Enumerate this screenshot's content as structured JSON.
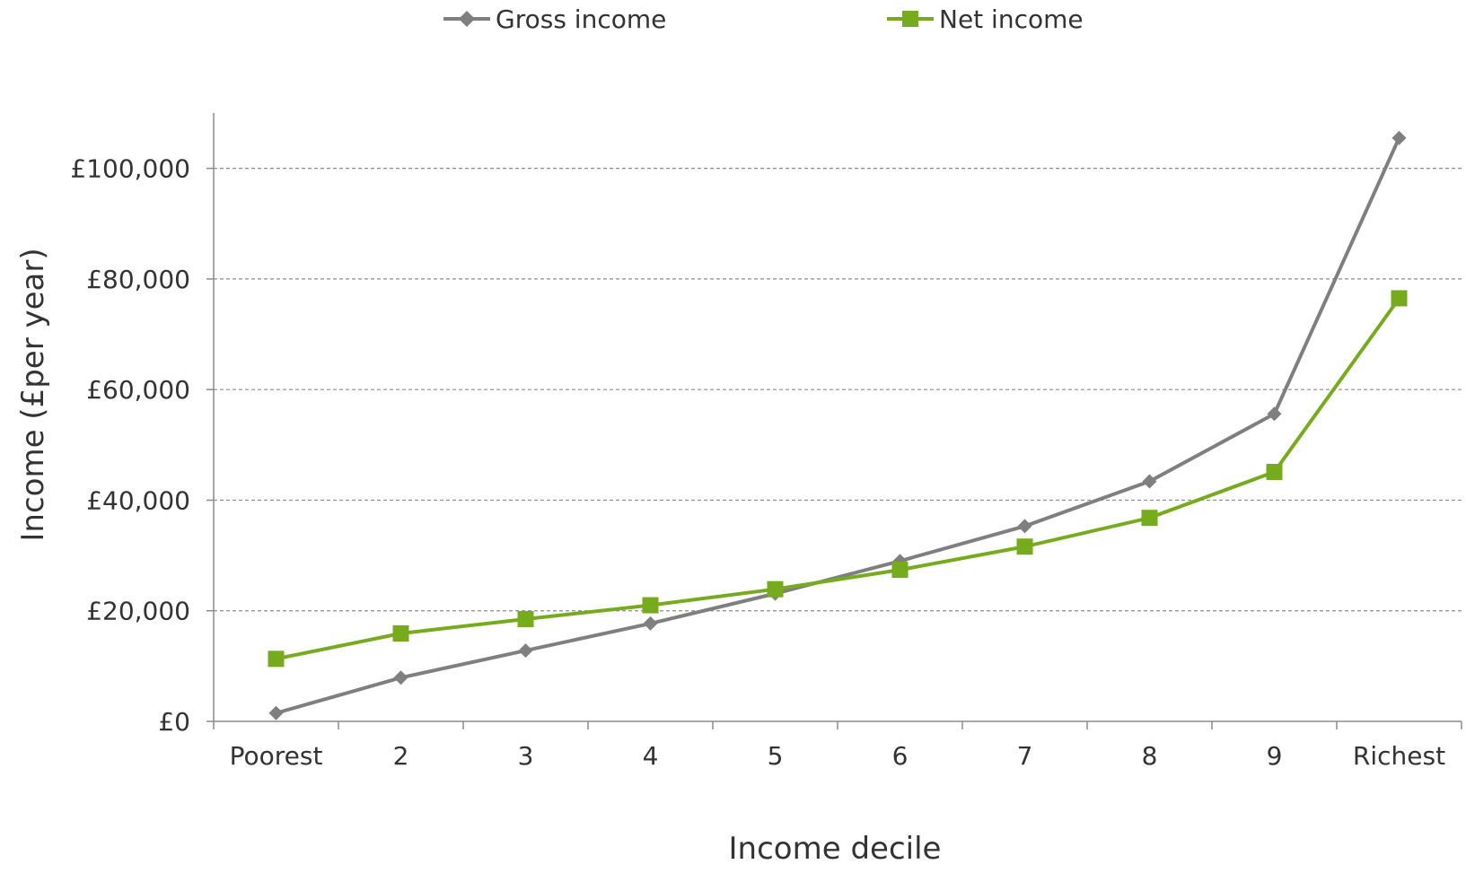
{
  "chart_data": {
    "type": "line",
    "title": "",
    "xlabel": "Income decile",
    "ylabel": "Income (£per year)",
    "categories": [
      "Poorest",
      "2",
      "3",
      "4",
      "5",
      "6",
      "7",
      "8",
      "9",
      "Richest"
    ],
    "ylim": [
      0,
      110000
    ],
    "yticks": [
      0,
      20000,
      40000,
      60000,
      80000,
      100000
    ],
    "ytick_labels": [
      "£0",
      "£20,000",
      "£40,000",
      "£60,000",
      "£80,000",
      "£100,000"
    ],
    "grid": "horizontal dashed",
    "legend_position": "top",
    "series": [
      {
        "name": "Gross income",
        "color": "#7f7f7f",
        "marker": "diamond",
        "values": [
          1500,
          7900,
          12800,
          17700,
          23100,
          29000,
          35300,
          43400,
          55600,
          105500
        ]
      },
      {
        "name": "Net income",
        "color": "#77ab1e",
        "marker": "square",
        "values": [
          11300,
          15900,
          18500,
          21000,
          23900,
          27400,
          31600,
          36800,
          45100,
          76500
        ]
      }
    ]
  }
}
